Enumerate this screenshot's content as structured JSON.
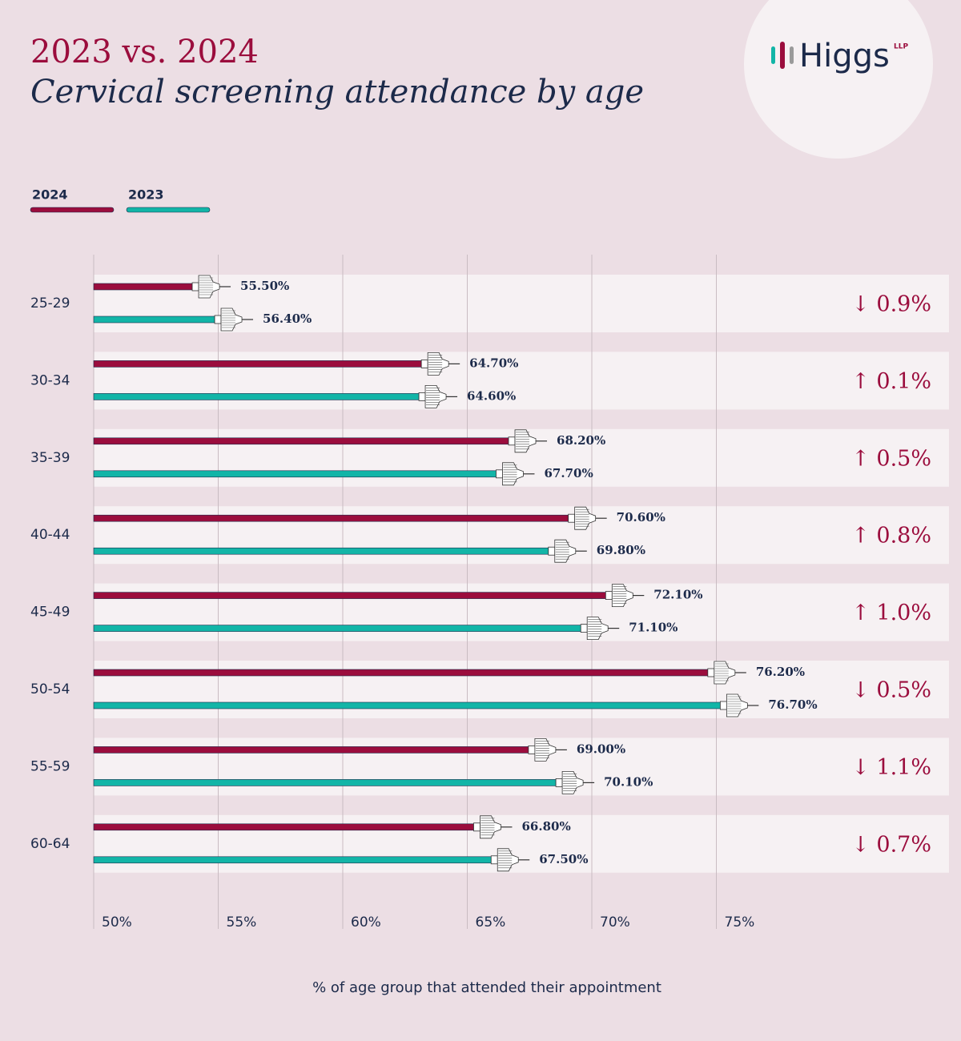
{
  "logo": {
    "text": "Higgs",
    "suffix": "LLP"
  },
  "chart_data": {
    "type": "bar",
    "orientation": "horizontal",
    "title": "2023 vs. 2024",
    "subtitle": "Cervical screening attendance by age",
    "x_label": "% of age group that attended their appointment",
    "categories": [
      "25-29",
      "30-34",
      "35-39",
      "40-44",
      "45-49",
      "50-54",
      "55-59",
      "60-64"
    ],
    "series": [
      {
        "name": "2024",
        "color": "#9b0d3d",
        "values": [
          55.5,
          64.7,
          68.2,
          70.6,
          72.1,
          76.2,
          69.0,
          66.8
        ],
        "value_labels": [
          "55.50%",
          "64.70%",
          "68.20%",
          "70.60%",
          "72.10%",
          "76.20%",
          "69.00%",
          "66.80%"
        ]
      },
      {
        "name": "2023",
        "color": "#12b5a7",
        "values": [
          56.4,
          64.6,
          67.7,
          69.8,
          71.1,
          76.7,
          70.1,
          67.5
        ],
        "value_labels": [
          "56.40%",
          "64.60%",
          "67.70%",
          "69.80%",
          "71.10%",
          "76.70%",
          "70.10%",
          "67.50%"
        ]
      }
    ],
    "annotations": [
      "↓ 0.9%",
      "↑ 0.1%",
      "↑ 0.5%",
      "↑ 0.8%",
      "↑ 1.0%",
      "↓ 0.5%",
      "↓ 1.1%",
      "↓ 0.7%"
    ],
    "xlim": [
      50,
      80
    ],
    "xticks": [
      {
        "value": 50,
        "label": "50%"
      },
      {
        "value": 55,
        "label": "55%"
      },
      {
        "value": 60,
        "label": "60%"
      },
      {
        "value": 65,
        "label": "65%"
      },
      {
        "value": 70,
        "label": "70%"
      },
      {
        "value": 75,
        "label": "75%"
      }
    ],
    "grid": true,
    "legend": "top-left"
  }
}
